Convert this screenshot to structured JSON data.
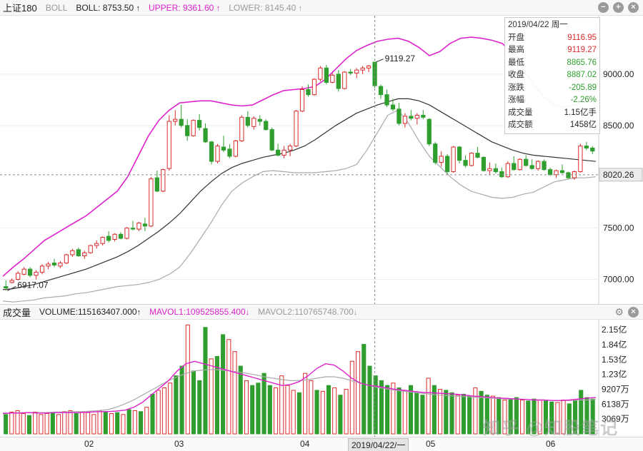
{
  "main_header": {
    "index_name": "上证180",
    "indicator": "BOLL",
    "boll_label": "BOLL: 8753.50",
    "upper_label": "UPPER: 9361.60",
    "lower_label": "LOWER: 8145.40",
    "arrow": "↑"
  },
  "vol_header": {
    "title": "成交量",
    "volume_label": "VOLUME:115163407.000",
    "mavol1_label": "MAVOL1:109525855.400",
    "mavol2_label": "MAVOL2:110765748.700",
    "arrow_up": "↑",
    "arrow_down": "↓"
  },
  "icons": {
    "minimize": "minus-icon",
    "add": "plus-icon",
    "close": "close-icon",
    "settings": "gear-icon"
  },
  "colors": {
    "up": "#d92b2b",
    "down": "#2f9e2f",
    "upper": "#dd22cc",
    "mid": "#333333",
    "lower": "#aaaaaa"
  },
  "price_axis": [
    "9000.00",
    "8500.00",
    "8020.26",
    "7500.00",
    "7000.00"
  ],
  "volume_axis": [
    "2.15亿",
    "1.84亿",
    "1.53亿",
    "1.23亿",
    "9207万",
    "6138万",
    "3069万"
  ],
  "annotations": {
    "high": "9119.27",
    "low": "6917.07"
  },
  "tooltip": {
    "date": "2019/04/22 周一",
    "rows": [
      {
        "label": "开盘",
        "value": "9116.95",
        "color": "#d92b2b"
      },
      {
        "label": "最高",
        "value": "9119.27",
        "color": "#d92b2b"
      },
      {
        "label": "最低",
        "value": "8865.76",
        "color": "#2f9e2f"
      },
      {
        "label": "收盘",
        "value": "8887.02",
        "color": "#2f9e2f"
      },
      {
        "label": "涨跌",
        "value": "-205.89",
        "color": "#2f9e2f"
      },
      {
        "label": "涨幅",
        "value": "-2.26%",
        "color": "#2f9e2f"
      },
      {
        "label": "成交量",
        "value": "1.15亿手",
        "color": "#222222"
      },
      {
        "label": "成交额",
        "value": "1458亿",
        "color": "#222222"
      }
    ]
  },
  "x_axis": {
    "months": [
      "02",
      "03",
      "04",
      "05",
      "06"
    ],
    "selected_date": "2019/04/22/一"
  },
  "watermark": "知乎 @知股笔记",
  "chart_data": {
    "type": "candlestick",
    "title": "上证180",
    "ylim": [
      6830,
      9500
    ],
    "current_price": 8020.26,
    "candles": [
      [
        6930,
        6990,
        6890,
        6917
      ],
      [
        6970,
        7010,
        6960,
        6990
      ],
      [
        7000,
        7080,
        6990,
        7060
      ],
      [
        7050,
        7120,
        7040,
        7100
      ],
      [
        7100,
        7120,
        7020,
        7040
      ],
      [
        7040,
        7090,
        7000,
        7070
      ],
      [
        7070,
        7150,
        7050,
        7130
      ],
      [
        7130,
        7170,
        7100,
        7150
      ],
      [
        7160,
        7200,
        7120,
        7140
      ],
      [
        7130,
        7180,
        7110,
        7160
      ],
      [
        7160,
        7250,
        7150,
        7240
      ],
      [
        7240,
        7300,
        7220,
        7280
      ],
      [
        7290,
        7310,
        7220,
        7230
      ],
      [
        7230,
        7280,
        7200,
        7260
      ],
      [
        7260,
        7340,
        7250,
        7330
      ],
      [
        7330,
        7380,
        7300,
        7350
      ],
      [
        7350,
        7420,
        7330,
        7410
      ],
      [
        7420,
        7470,
        7360,
        7380
      ],
      [
        7390,
        7450,
        7370,
        7440
      ],
      [
        7440,
        7460,
        7390,
        7400
      ],
      [
        7400,
        7510,
        7390,
        7500
      ],
      [
        7500,
        7570,
        7480,
        7490
      ],
      [
        7490,
        7560,
        7470,
        7550
      ],
      [
        7540,
        7600,
        7470,
        7520
      ],
      [
        7520,
        8000,
        7510,
        7980
      ],
      [
        7990,
        8060,
        7850,
        7860
      ],
      [
        7860,
        8080,
        7850,
        8070
      ],
      [
        8080,
        8600,
        8060,
        8540
      ],
      [
        8540,
        8650,
        8500,
        8560
      ],
      [
        8560,
        8700,
        8480,
        8500
      ],
      [
        8500,
        8560,
        8350,
        8400
      ],
      [
        8400,
        8560,
        8390,
        8550
      ],
      [
        8550,
        8610,
        8450,
        8480
      ],
      [
        8470,
        8520,
        8330,
        8340
      ],
      [
        8340,
        8350,
        8120,
        8150
      ],
      [
        8150,
        8320,
        8130,
        8300
      ],
      [
        8290,
        8400,
        8240,
        8260
      ],
      [
        8270,
        8320,
        8180,
        8200
      ],
      [
        8200,
        8360,
        8190,
        8350
      ],
      [
        8350,
        8600,
        8340,
        8580
      ],
      [
        8580,
        8640,
        8480,
        8500
      ],
      [
        8490,
        8590,
        8460,
        8570
      ],
      [
        8560,
        8600,
        8500,
        8540
      ],
      [
        8540,
        8560,
        8450,
        8460
      ],
      [
        8460,
        8480,
        8250,
        8260
      ],
      [
        8260,
        8320,
        8200,
        8210
      ],
      [
        8210,
        8300,
        8180,
        8260
      ],
      [
        8260,
        8320,
        8200,
        8300
      ],
      [
        8300,
        8650,
        8290,
        8640
      ],
      [
        8640,
        8880,
        8630,
        8850
      ],
      [
        8850,
        8900,
        8780,
        8800
      ],
      [
        8800,
        8960,
        8790,
        8950
      ],
      [
        8950,
        9080,
        8930,
        9060
      ],
      [
        9060,
        9090,
        8900,
        8920
      ],
      [
        8920,
        9010,
        8910,
        8990
      ],
      [
        9000,
        9040,
        8830,
        8860
      ],
      [
        8860,
        9030,
        8850,
        9020
      ],
      [
        9020,
        9050,
        8990,
        9010
      ],
      [
        9010,
        9060,
        8960,
        9040
      ],
      [
        9040,
        9080,
        9000,
        9060
      ],
      [
        9060,
        9090,
        9020,
        9080
      ],
      [
        9116.95,
        9119.27,
        8865.76,
        8887.02
      ],
      [
        8880,
        8900,
        8760,
        8800
      ],
      [
        8800,
        8850,
        8680,
        8700
      ],
      [
        8700,
        8760,
        8640,
        8660
      ],
      [
        8660,
        8720,
        8500,
        8520
      ],
      [
        8520,
        8620,
        8480,
        8590
      ],
      [
        8590,
        8650,
        8550,
        8570
      ],
      [
        8570,
        8620,
        8510,
        8600
      ],
      [
        8600,
        8650,
        8560,
        8580
      ],
      [
        8560,
        8570,
        8300,
        8320
      ],
      [
        8320,
        8340,
        8120,
        8140
      ],
      [
        8140,
        8250,
        8100,
        8200
      ],
      [
        8200,
        8220,
        8030,
        8050
      ],
      [
        8050,
        8300,
        8040,
        8290
      ],
      [
        8290,
        8300,
        8130,
        8160
      ],
      [
        8160,
        8210,
        8090,
        8110
      ],
      [
        8110,
        8240,
        8100,
        8230
      ],
      [
        8230,
        8290,
        8180,
        8190
      ],
      [
        8190,
        8200,
        8050,
        8060
      ],
      [
        8060,
        8140,
        8020,
        8080
      ],
      [
        8080,
        8130,
        8030,
        8050
      ],
      [
        8050,
        8090,
        7990,
        8000
      ],
      [
        8000,
        8150,
        7990,
        8130
      ],
      [
        8130,
        8200,
        8060,
        8070
      ],
      [
        8070,
        8180,
        8060,
        8170
      ],
      [
        8170,
        8210,
        8100,
        8110
      ],
      [
        8110,
        8170,
        8070,
        8080
      ],
      [
        8080,
        8160,
        8060,
        8150
      ],
      [
        8150,
        8170,
        8060,
        8070
      ],
      [
        8070,
        8090,
        8010,
        8020
      ],
      [
        8020,
        8070,
        7990,
        8060
      ],
      [
        8060,
        8120,
        8030,
        8040
      ],
      [
        8040,
        8050,
        7980,
        7990
      ],
      [
        7990,
        8060,
        7970,
        8050
      ],
      [
        8050,
        8320,
        8040,
        8300
      ],
      [
        8300,
        8340,
        8260,
        8280
      ],
      [
        8280,
        8300,
        8220,
        8250
      ]
    ],
    "upper_band": [
      7030,
      7120,
      7200,
      7290,
      7380,
      7440,
      7500,
      7560,
      7620,
      7700,
      7780,
      7860,
      8000,
      8200,
      8400,
      8550,
      8650,
      8720,
      8730,
      8740,
      8740,
      8720,
      8700,
      8690,
      8700,
      8750,
      8800,
      8840,
      8850,
      8860,
      8880,
      8950,
      9050,
      9150,
      9230,
      9280,
      9320,
      9340,
      9350,
      9320,
      9260,
      9180,
      9220,
      9300,
      9350,
      9360,
      9350,
      9330,
      9300,
      9200,
      9050,
      8900,
      8780,
      8700,
      8680,
      8700,
      8760,
      8830
    ],
    "middle_band": [
      6900,
      6910,
      6930,
      6950,
      6980,
      7010,
      7040,
      7070,
      7100,
      7140,
      7180,
      7220,
      7270,
      7330,
      7400,
      7470,
      7550,
      7640,
      7750,
      7860,
      7950,
      8030,
      8090,
      8130,
      8160,
      8190,
      8210,
      8230,
      8260,
      8300,
      8360,
      8430,
      8500,
      8560,
      8620,
      8660,
      8700,
      8730,
      8760,
      8760,
      8740,
      8700,
      8640,
      8580,
      8520,
      8460,
      8400,
      8340,
      8300,
      8260,
      8230,
      8210,
      8200,
      8190,
      8180,
      8170,
      8160,
      8150
    ],
    "lower_band": [
      6790,
      6780,
      6790,
      6800,
      6820,
      6830,
      6840,
      6860,
      6870,
      6890,
      6910,
      6930,
      6940,
      6950,
      6970,
      7000,
      7050,
      7120,
      7250,
      7400,
      7550,
      7720,
      7860,
      7940,
      8000,
      8050,
      8060,
      8050,
      8040,
      8040,
      8040,
      8050,
      8060,
      8080,
      8120,
      8260,
      8430,
      8600,
      8650,
      8520,
      8350,
      8200,
      8100,
      8000,
      7920,
      7860,
      7830,
      7800,
      7790,
      7800,
      7830,
      7850,
      7900,
      7950,
      7970,
      7990,
      7990,
      8000
    ],
    "volume_series": {
      "name": "VOLUME",
      "values_yi": [
        0.4,
        0.45,
        0.48,
        0.42,
        0.38,
        0.45,
        0.4,
        0.42,
        0.44,
        0.4,
        0.46,
        0.48,
        0.42,
        0.45,
        0.44,
        0.4,
        0.48,
        0.46,
        0.42,
        0.44,
        0.4,
        0.5,
        0.48,
        0.46,
        0.55,
        0.82,
        0.9,
        0.95,
        1.05,
        1.2,
        1.4,
        2.25,
        1.3,
        1.1,
        2.2,
        1.55,
        1.6,
        2.05,
        1.95,
        1.7,
        1.4,
        1.1,
        1.0,
        1.05,
        1.25,
        1.0,
        0.95,
        1.2,
        1.0,
        0.9,
        0.85,
        1.25,
        1.1,
        0.9,
        0.88,
        1.0,
        0.95,
        0.8,
        0.92,
        1.5,
        1.7,
        1.85,
        1.4,
        1.2,
        1.1,
        1.0,
        1.05,
        0.95,
        0.9,
        1.0,
        0.85,
        0.8,
        1.15,
        1.0,
        0.92,
        0.9,
        0.85,
        0.8,
        0.82,
        0.78,
        0.95,
        0.88,
        0.8,
        0.78,
        0.75,
        0.7,
        0.72,
        0.75,
        0.7,
        0.68,
        0.72,
        0.7,
        0.68,
        0.66,
        0.65,
        0.7,
        0.62,
        0.68,
        0.9,
        0.75,
        0.72
      ]
    },
    "mavol1": [
      0.42,
      0.43,
      0.43,
      0.44,
      0.43,
      0.43,
      0.44,
      0.44,
      0.44,
      0.44,
      0.45,
      0.46,
      0.46,
      0.47,
      0.49,
      0.55,
      0.65,
      0.8,
      0.95,
      1.1,
      1.3,
      1.45,
      1.5,
      1.45,
      1.4,
      1.35,
      1.3,
      1.25,
      1.2,
      1.15,
      1.1,
      1.05,
      1.0,
      1.02,
      1.08,
      1.2,
      1.35,
      1.45,
      1.42,
      1.3,
      1.15,
      1.05,
      1.0,
      0.98,
      0.95,
      0.92,
      0.9,
      0.88,
      0.86,
      0.85,
      0.84,
      0.83,
      0.82,
      0.8,
      0.78,
      0.77,
      0.75,
      0.74,
      0.73,
      0.72,
      0.71,
      0.7,
      0.7,
      0.69,
      0.69,
      0.7,
      0.72,
      0.74,
      0.75
    ],
    "mavol2": [
      0.43,
      0.43,
      0.44,
      0.44,
      0.44,
      0.44,
      0.45,
      0.45,
      0.46,
      0.46,
      0.47,
      0.48,
      0.5,
      0.55,
      0.62,
      0.7,
      0.8,
      0.9,
      1.0,
      1.1,
      1.18,
      1.25,
      1.3,
      1.32,
      1.33,
      1.32,
      1.3,
      1.28,
      1.25,
      1.22,
      1.18,
      1.15,
      1.12,
      1.1,
      1.1,
      1.12,
      1.15,
      1.18,
      1.18,
      1.15,
      1.1,
      1.05,
      1.0,
      0.96,
      0.93,
      0.9,
      0.88,
      0.86,
      0.84,
      0.82,
      0.8,
      0.79,
      0.78,
      0.77,
      0.76,
      0.75,
      0.74,
      0.73,
      0.72,
      0.72,
      0.71,
      0.7,
      0.7,
      0.69,
      0.69,
      0.69,
      0.7,
      0.7,
      0.71
    ],
    "volume_ylim_yi": [
      0,
      2.3
    ],
    "legend": [
      "BOLL",
      "UPPER",
      "LOWER",
      "VOLUME",
      "MAVOL1",
      "MAVOL2"
    ]
  }
}
